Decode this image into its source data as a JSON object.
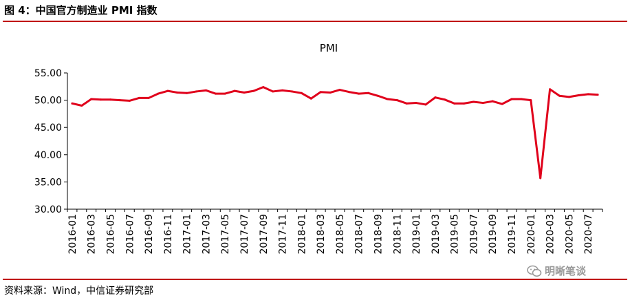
{
  "figure_title": "图 4：中国官方制造业 PMI 指数",
  "source": "资料来源：Wind，中信证券研究部",
  "watermark": "明晰笔谈",
  "colors": {
    "line": "#e0001b",
    "rule": "#c00000",
    "axis": "#000000"
  },
  "chart_data": {
    "type": "line",
    "title": "PMI",
    "xlabel": "",
    "ylabel": "",
    "ylim": [
      30,
      55
    ],
    "yticks": [
      "55.00",
      "50.00",
      "45.00",
      "40.00",
      "35.00",
      "30.00"
    ],
    "grid": false,
    "legend": "none",
    "xtick_labels": [
      "2016-01",
      "2016-03",
      "2016-05",
      "2016-07",
      "2016-09",
      "2016-11",
      "2017-01",
      "2017-03",
      "2017-05",
      "2017-07",
      "2017-09",
      "2017-11",
      "2018-01",
      "2018-03",
      "2018-05",
      "2018-07",
      "2018-09",
      "2018-11",
      "2019-01",
      "2019-03",
      "2019-05",
      "2019-07",
      "2019-09",
      "2019-11",
      "2020-01",
      "2020-03",
      "2020-05",
      "2020-07"
    ],
    "x": [
      "2016-01",
      "2016-02",
      "2016-03",
      "2016-04",
      "2016-05",
      "2016-06",
      "2016-07",
      "2016-08",
      "2016-09",
      "2016-10",
      "2016-11",
      "2016-12",
      "2017-01",
      "2017-02",
      "2017-03",
      "2017-04",
      "2017-05",
      "2017-06",
      "2017-07",
      "2017-08",
      "2017-09",
      "2017-10",
      "2017-11",
      "2017-12",
      "2018-01",
      "2018-02",
      "2018-03",
      "2018-04",
      "2018-05",
      "2018-06",
      "2018-07",
      "2018-08",
      "2018-09",
      "2018-10",
      "2018-11",
      "2018-12",
      "2019-01",
      "2019-02",
      "2019-03",
      "2019-04",
      "2019-05",
      "2019-06",
      "2019-07",
      "2019-08",
      "2019-09",
      "2019-10",
      "2019-11",
      "2019-12",
      "2020-01",
      "2020-02",
      "2020-03",
      "2020-04",
      "2020-05",
      "2020-06",
      "2020-07",
      "2020-08"
    ],
    "series": [
      {
        "values": [
          49.4,
          49.0,
          50.2,
          50.1,
          50.1,
          50.0,
          49.9,
          50.4,
          50.4,
          51.2,
          51.7,
          51.4,
          51.3,
          51.6,
          51.8,
          51.2,
          51.2,
          51.7,
          51.4,
          51.7,
          52.4,
          51.6,
          51.8,
          51.6,
          51.3,
          50.3,
          51.5,
          51.4,
          51.9,
          51.5,
          51.2,
          51.3,
          50.8,
          50.2,
          50.0,
          49.4,
          49.5,
          49.2,
          50.5,
          50.1,
          49.4,
          49.4,
          49.7,
          49.5,
          49.8,
          49.3,
          50.2,
          50.2,
          50.0,
          35.7,
          52.0,
          50.8,
          50.6,
          50.9,
          51.1,
          51.0
        ]
      }
    ]
  }
}
